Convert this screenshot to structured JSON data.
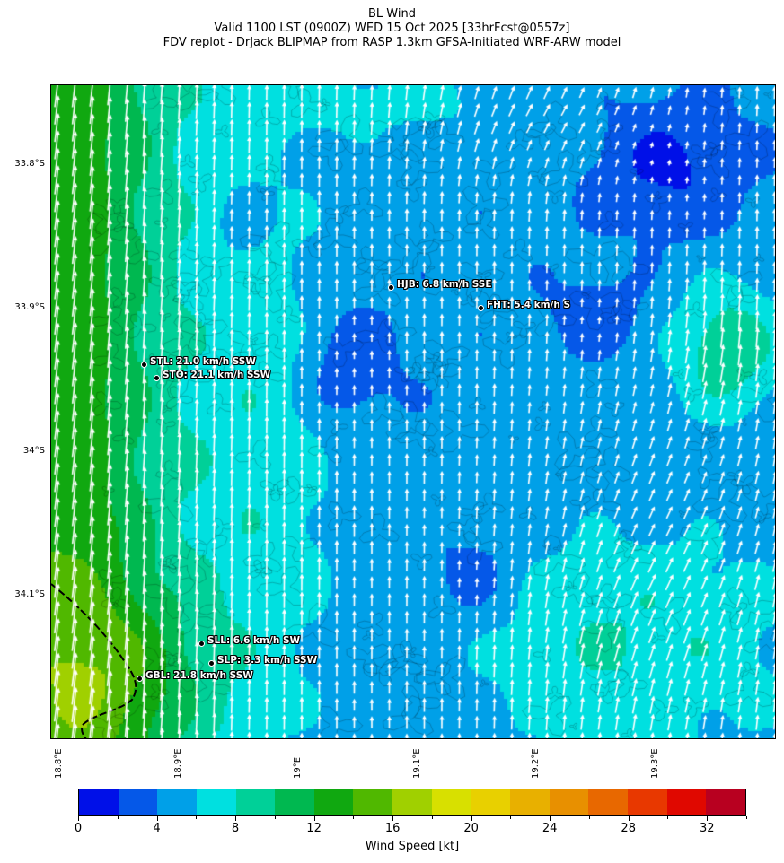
{
  "title": {
    "line1": "BL Wind",
    "line2": "Valid 1100 LST (0900Z) WED 15 Oct 2025 [33hrFcst@0557z]",
    "line3": "FDV replot - DrJack BLIPMAP from RASP 1.3km GFSA-Initiated WRF-ARW model"
  },
  "map": {
    "lat_ticks": [
      "33.8°S",
      "33.9°S",
      "34°S",
      "34.1°S"
    ],
    "lon_ticks": [
      "18.8°E",
      "18.9°E",
      "19°E",
      "19.1°E",
      "19.2°E",
      "19.3°E"
    ],
    "layers": [
      "wind-speed-fill",
      "terrain-contours",
      "wind-vectors",
      "coastline"
    ],
    "vector_color": "#ffffff",
    "stations": [
      {
        "label": "STL: 21.0 km/h SSW"
      },
      {
        "label": "STO: 21.1 km/h SSW"
      },
      {
        "label": "HJB: 6.8 km/h SSE"
      },
      {
        "label": "FHT: 5.4 km/h S"
      },
      {
        "label": "SLL: 6.6 km/h SW"
      },
      {
        "label": "SLP: 3.3 km/h SSW"
      },
      {
        "label": "GBL: 21.8 km/h SSW"
      }
    ]
  },
  "colorbar": {
    "label": "Wind Speed [kt]",
    "min": 0,
    "max": 34,
    "step": 2,
    "tick_labels": [
      "0",
      "4",
      "8",
      "12",
      "16",
      "20",
      "24",
      "28",
      "32"
    ],
    "colors": [
      "#0010e8",
      "#0558e8",
      "#00a0e8",
      "#00e0e0",
      "#00d098",
      "#00b850",
      "#10a810",
      "#50b800",
      "#a0d000",
      "#d8e000",
      "#e8d000",
      "#e8b000",
      "#e89000",
      "#e86800",
      "#e83800",
      "#e00800",
      "#b80020"
    ]
  }
}
